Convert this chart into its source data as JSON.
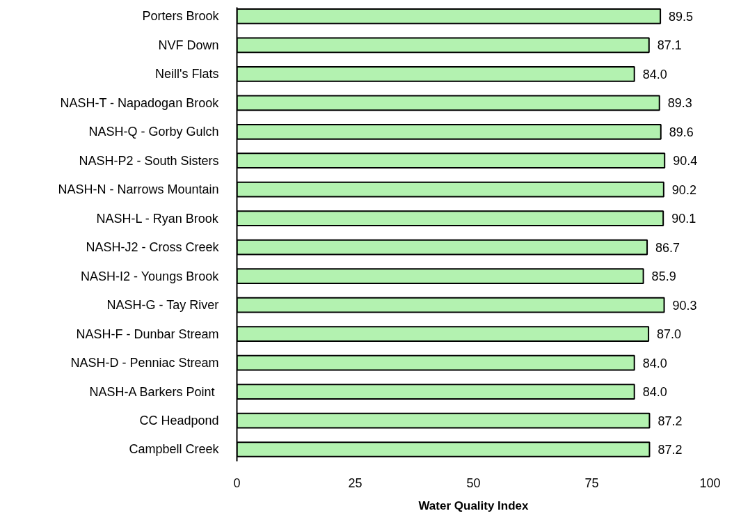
{
  "chart_data": {
    "type": "bar",
    "orientation": "horizontal",
    "xlabel": "Water Quality Index",
    "categories": [
      "Porters Brook",
      "NVF Down",
      "Neill's Flats",
      "NASH-T - Napadogan Brook",
      "NASH-Q - Gorby Gulch",
      "NASH-P2 - South Sisters",
      "NASH-N - Narrows Mountain",
      "NASH-L - Ryan Brook",
      "NASH-J2 - Cross Creek",
      "NASH-I2 - Youngs Brook",
      "NASH-G - Tay River",
      "NASH-F - Dunbar Stream",
      "NASH-D - Penniac Stream",
      "NASH-A  Barkers Point",
      "CC Headpond",
      "Campbell Creek"
    ],
    "values": [
      89.5,
      87.1,
      84.0,
      89.3,
      89.6,
      90.4,
      90.2,
      90.1,
      86.7,
      85.9,
      90.3,
      87.0,
      84.0,
      84.0,
      87.2,
      87.2
    ],
    "value_labels": [
      "89.5",
      "87.1",
      "84.0",
      "89.3",
      "89.6",
      "90.4",
      "90.2",
      "90.1",
      "86.7",
      "85.9",
      "90.3",
      "87.0",
      "84.0",
      "84.0",
      "87.2",
      "87.2"
    ],
    "color": "#b3f2b0",
    "xlim": [
      0,
      100
    ],
    "xticks": [
      0,
      25,
      50,
      75,
      100
    ]
  }
}
